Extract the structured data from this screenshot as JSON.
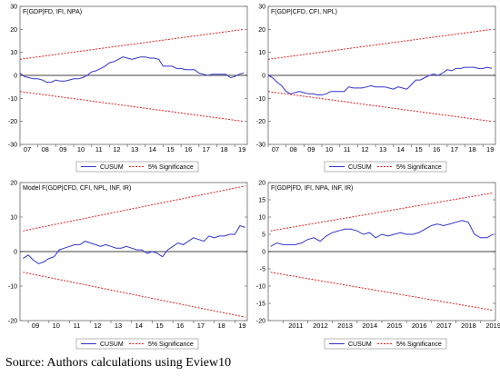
{
  "caption": "Source: Authors calculations using Eview10",
  "colors": {
    "cusum": "#3333cc",
    "significance": "#dd2222",
    "frame": "#666666",
    "zero": "#000000"
  },
  "chart_data": [
    {
      "type": "line",
      "title": "F(GDP|FD, IFI, NPA)",
      "ylim": [
        -30,
        30
      ],
      "yticks": [
        -30,
        -20,
        -10,
        0,
        10,
        20,
        30
      ],
      "xlim": [
        2007.0,
        2019.7
      ],
      "xticks": [
        2007,
        2008,
        2009,
        2010,
        2011,
        2012,
        2013,
        2014,
        2015,
        2016,
        2017,
        2018,
        2019
      ],
      "xticklabels": [
        "07",
        "08",
        "09",
        "10",
        "11",
        "12",
        "13",
        "14",
        "15",
        "16",
        "17",
        "18",
        "19"
      ],
      "legend": {
        "placement": "bottom-center",
        "items": [
          "CUSUM",
          "5% Significance"
        ]
      },
      "series": [
        {
          "name": "CUSUM",
          "x": [
            2007.0,
            2007.25,
            2007.5,
            2007.75,
            2008.0,
            2008.25,
            2008.5,
            2008.75,
            2009.0,
            2009.25,
            2009.5,
            2009.75,
            2010.0,
            2010.25,
            2010.5,
            2010.75,
            2011.0,
            2011.25,
            2011.5,
            2011.75,
            2012.0,
            2012.25,
            2012.5,
            2012.75,
            2013.0,
            2013.25,
            2013.5,
            2013.75,
            2014.0,
            2014.25,
            2014.5,
            2014.75,
            2015.0,
            2015.25,
            2015.5,
            2015.75,
            2016.0,
            2016.25,
            2016.5,
            2016.75,
            2017.0,
            2017.25,
            2017.5,
            2017.75,
            2018.0,
            2018.25,
            2018.5,
            2018.75,
            2019.0,
            2019.25,
            2019.5
          ],
          "values": [
            1.0,
            -0.5,
            -1.0,
            -1.5,
            -1.5,
            -2.0,
            -3.0,
            -3.0,
            -2.0,
            -2.5,
            -2.5,
            -2.0,
            -1.5,
            -1.5,
            -1.0,
            0.0,
            1.5,
            2.0,
            3.0,
            4.0,
            5.5,
            6.0,
            7.0,
            8.0,
            7.5,
            7.0,
            7.5,
            8.0,
            8.0,
            7.5,
            7.5,
            7.0,
            4.0,
            4.0,
            4.0,
            3.0,
            3.0,
            2.5,
            2.5,
            2.5,
            1.0,
            0.5,
            0.0,
            0.5,
            0.5,
            0.5,
            0.5,
            -1.0,
            -0.5,
            0.5,
            1.0
          ]
        },
        {
          "name": "5% Significance",
          "x": [
            2007.0,
            2019.5
          ],
          "upper": [
            7,
            20
          ],
          "lower": [
            -7,
            -20
          ]
        }
      ]
    },
    {
      "type": "line",
      "title": "F(GDP|CFD, CFI, NPL)",
      "ylim": [
        -30,
        30
      ],
      "yticks": [
        -30,
        -20,
        -10,
        0,
        10,
        20,
        30
      ],
      "xlim": [
        2007.0,
        2019.7
      ],
      "xticks": [
        2007,
        2008,
        2009,
        2010,
        2011,
        2012,
        2013,
        2014,
        2015,
        2016,
        2017,
        2018,
        2019
      ],
      "xticklabels": [
        "07",
        "08",
        "09",
        "10",
        "11",
        "12",
        "13",
        "14",
        "15",
        "16",
        "17",
        "18",
        "19"
      ],
      "legend": {
        "placement": "bottom-center",
        "items": [
          "CUSUM",
          "5% Significance"
        ]
      },
      "series": [
        {
          "name": "CUSUM",
          "x": [
            2007.0,
            2007.25,
            2007.5,
            2007.75,
            2008.0,
            2008.25,
            2008.5,
            2008.75,
            2009.0,
            2009.25,
            2009.5,
            2009.75,
            2010.0,
            2010.25,
            2010.5,
            2010.75,
            2011.0,
            2011.25,
            2011.5,
            2011.75,
            2012.0,
            2012.25,
            2012.5,
            2012.75,
            2013.0,
            2013.25,
            2013.5,
            2013.75,
            2014.0,
            2014.25,
            2014.5,
            2014.75,
            2015.0,
            2015.25,
            2015.5,
            2015.75,
            2016.0,
            2016.25,
            2016.5,
            2016.75,
            2017.0,
            2017.25,
            2017.5,
            2017.75,
            2018.0,
            2018.25,
            2018.5,
            2018.75,
            2019.0,
            2019.25,
            2019.5
          ],
          "values": [
            0.0,
            -1.0,
            -3.0,
            -4.5,
            -7.0,
            -8.0,
            -7.5,
            -7.0,
            -7.5,
            -8.0,
            -8.0,
            -8.5,
            -8.5,
            -8.0,
            -7.0,
            -7.0,
            -7.0,
            -7.0,
            -5.0,
            -5.5,
            -5.5,
            -5.5,
            -5.0,
            -4.5,
            -5.0,
            -5.0,
            -5.0,
            -5.5,
            -6.0,
            -5.0,
            -5.5,
            -6.0,
            -4.0,
            -2.0,
            -2.0,
            -1.0,
            0.0,
            0.5,
            0.0,
            1.0,
            2.5,
            2.0,
            3.0,
            3.0,
            3.5,
            3.5,
            3.5,
            3.0,
            3.0,
            3.5,
            3.0
          ]
        },
        {
          "name": "5% Significance",
          "x": [
            2007.0,
            2019.5
          ],
          "upper": [
            7,
            20
          ],
          "lower": [
            -7,
            -20
          ]
        }
      ]
    },
    {
      "type": "line",
      "title": "Model F(GDP|CFD, CFI, NPL, INF, IR)",
      "ylim": [
        -20,
        20
      ],
      "yticks": [
        -20,
        -10,
        0,
        10,
        20
      ],
      "xlim": [
        2008.6,
        2019.6
      ],
      "xticks": [
        2009,
        2010,
        2011,
        2012,
        2013,
        2014,
        2015,
        2016,
        2017,
        2018,
        2019
      ],
      "xticklabels": [
        "09",
        "10",
        "11",
        "12",
        "13",
        "14",
        "15",
        "16",
        "17",
        "18",
        "19"
      ],
      "legend": {
        "placement": "bottom-center",
        "items": [
          "CUSUM",
          "5% Significance"
        ]
      },
      "series": [
        {
          "name": "CUSUM",
          "x": [
            2008.75,
            2009.0,
            2009.25,
            2009.5,
            2009.75,
            2010.0,
            2010.25,
            2010.5,
            2010.75,
            2011.0,
            2011.25,
            2011.5,
            2011.75,
            2012.0,
            2012.25,
            2012.5,
            2012.75,
            2013.0,
            2013.25,
            2013.5,
            2013.75,
            2014.0,
            2014.25,
            2014.5,
            2014.75,
            2015.0,
            2015.25,
            2015.5,
            2015.75,
            2016.0,
            2016.25,
            2016.5,
            2016.75,
            2017.0,
            2017.25,
            2017.5,
            2017.75,
            2018.0,
            2018.25,
            2018.5,
            2018.75,
            2019.0,
            2019.25,
            2019.5
          ],
          "values": [
            -2.0,
            -1.0,
            -2.5,
            -3.5,
            -3.0,
            -2.0,
            -1.5,
            0.5,
            1.0,
            1.5,
            2.0,
            2.0,
            3.0,
            2.5,
            2.0,
            1.5,
            2.0,
            1.5,
            1.0,
            1.0,
            1.5,
            1.0,
            0.5,
            0.5,
            -0.5,
            0.0,
            -0.5,
            -1.5,
            0.5,
            1.5,
            2.5,
            2.0,
            3.0,
            4.0,
            3.5,
            3.0,
            4.5,
            4.0,
            4.5,
            4.5,
            5.0,
            5.0,
            7.5,
            7.0
          ]
        },
        {
          "name": "5% Significance",
          "x": [
            2008.75,
            2019.5
          ],
          "upper": [
            6,
            19
          ],
          "lower": [
            -6,
            -19
          ]
        }
      ]
    },
    {
      "type": "line",
      "title": "F(GDP|FD, IFI, NPA, INF, IR)",
      "ylim": [
        -20,
        20
      ],
      "yticks": [
        -20,
        -15,
        -10,
        -5,
        0,
        5,
        10,
        15,
        20
      ],
      "xlim": [
        2010.4,
        2019.6
      ],
      "xticks": [
        2011,
        2012,
        2013,
        2014,
        2015,
        2016,
        2017,
        2018,
        2019
      ],
      "xticklabels": [
        "2011",
        "2012",
        "2013",
        "2014",
        "2015",
        "2016",
        "2017",
        "2018",
        "2019"
      ],
      "legend": {
        "placement": "bottom-center",
        "items": [
          "CUSUM",
          "5% Significance"
        ]
      },
      "series": [
        {
          "name": "CUSUM",
          "x": [
            2010.5,
            2010.75,
            2011.0,
            2011.25,
            2011.5,
            2011.75,
            2012.0,
            2012.25,
            2012.5,
            2012.75,
            2013.0,
            2013.25,
            2013.5,
            2013.75,
            2014.0,
            2014.25,
            2014.5,
            2014.75,
            2015.0,
            2015.25,
            2015.5,
            2015.75,
            2016.0,
            2016.25,
            2016.5,
            2016.75,
            2017.0,
            2017.25,
            2017.5,
            2017.75,
            2018.0,
            2018.25,
            2018.5,
            2018.75,
            2019.0,
            2019.25,
            2019.5
          ],
          "values": [
            1.5,
            2.5,
            2.0,
            2.0,
            2.0,
            2.5,
            3.5,
            4.0,
            3.0,
            4.5,
            5.5,
            6.0,
            6.5,
            6.5,
            6.0,
            5.0,
            5.5,
            4.0,
            5.0,
            4.5,
            5.0,
            5.5,
            5.0,
            5.0,
            5.5,
            6.5,
            7.5,
            8.0,
            7.5,
            8.0,
            8.5,
            9.0,
            8.5,
            5.0,
            4.0,
            4.0,
            5.0
          ]
        },
        {
          "name": "5% Significance",
          "x": [
            2010.5,
            2019.5
          ],
          "upper": [
            6,
            17
          ],
          "lower": [
            -6,
            -17
          ]
        }
      ]
    }
  ]
}
